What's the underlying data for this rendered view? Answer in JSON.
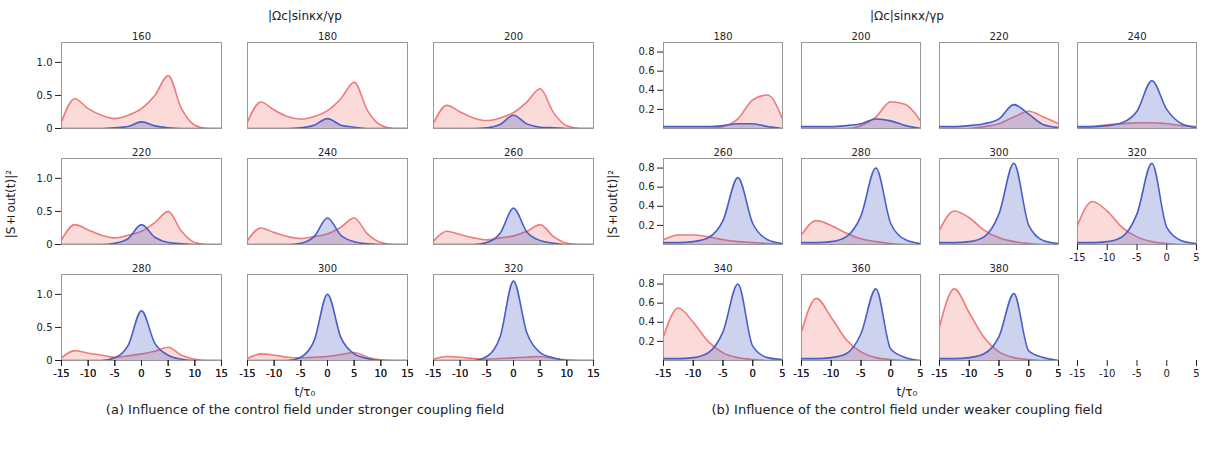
{
  "chart_data": [
    {
      "type": "line",
      "title": "(a) Influence of the control field under stronger coupling field",
      "xlabel": "t/τ₀",
      "ylabel": "|S±out(t)|²",
      "zlabel": "|Ωc|sinκx/γp",
      "x": [
        -15,
        -12.5,
        -10,
        -7.5,
        -5,
        -2.5,
        0,
        2.5,
        5,
        7.5,
        10,
        12.5,
        15
      ],
      "xlim": [
        -15,
        15
      ],
      "xticks": [
        -15,
        -10,
        -5,
        0,
        5,
        10,
        15
      ],
      "ylim": [
        0,
        1.3
      ],
      "yticks": [
        0,
        0.5,
        {
          "value": 1,
          "label": "1.0"
        }
      ],
      "z": [
        160,
        180,
        200,
        220,
        240,
        260,
        280,
        300,
        320
      ],
      "series": [
        {
          "color": "#ef7b7b",
          "values": [
            [
              0.1,
              0.45,
              0.3,
              0.2,
              0.15,
              0.2,
              0.3,
              0.5,
              0.8,
              0.3,
              0.05,
              0,
              0
            ],
            [
              0.1,
              0.4,
              0.28,
              0.18,
              0.14,
              0.18,
              0.27,
              0.45,
              0.7,
              0.27,
              0.05,
              0,
              0
            ],
            [
              0.08,
              0.35,
              0.25,
              0.16,
              0.12,
              0.16,
              0.24,
              0.4,
              0.6,
              0.24,
              0.04,
              0,
              0
            ],
            [
              0.07,
              0.3,
              0.22,
              0.14,
              0.1,
              0.14,
              0.2,
              0.33,
              0.5,
              0.2,
              0.03,
              0,
              0
            ],
            [
              0.06,
              0.25,
              0.18,
              0.12,
              0.09,
              0.12,
              0.16,
              0.26,
              0.4,
              0.16,
              0.03,
              0,
              0
            ],
            [
              0.05,
              0.2,
              0.15,
              0.1,
              0.07,
              0.1,
              0.13,
              0.2,
              0.3,
              0.12,
              0.02,
              0,
              0
            ],
            [
              0.04,
              0.15,
              0.11,
              0.08,
              0.05,
              0.07,
              0.1,
              0.14,
              0.2,
              0.08,
              0.02,
              0,
              0
            ],
            [
              0.03,
              0.1,
              0.08,
              0.05,
              0.04,
              0.05,
              0.06,
              0.09,
              0.12,
              0.05,
              0.01,
              0,
              0
            ],
            [
              0.02,
              0.06,
              0.05,
              0.03,
              0.02,
              0.03,
              0.04,
              0.05,
              0.06,
              0.03,
              0.01,
              0,
              0
            ]
          ]
        },
        {
          "color": "#4a5fc6",
          "values": [
            [
              0,
              0,
              0,
              0,
              0.01,
              0.03,
              0.1,
              0.04,
              0.01,
              0,
              0,
              0,
              0
            ],
            [
              0,
              0,
              0,
              0,
              0.01,
              0.05,
              0.15,
              0.05,
              0.02,
              0,
              0,
              0,
              0
            ],
            [
              0,
              0,
              0,
              0,
              0.01,
              0.06,
              0.2,
              0.07,
              0.02,
              0.01,
              0,
              0,
              0
            ],
            [
              0,
              0,
              0,
              0,
              0.02,
              0.09,
              0.3,
              0.11,
              0.03,
              0.01,
              0,
              0,
              0
            ],
            [
              0,
              0,
              0,
              0,
              0.02,
              0.12,
              0.4,
              0.14,
              0.04,
              0.01,
              0,
              0,
              0
            ],
            [
              0,
              0,
              0,
              0,
              0.03,
              0.17,
              0.55,
              0.19,
              0.06,
              0.02,
              0,
              0,
              0
            ],
            [
              0,
              0,
              0,
              0,
              0.04,
              0.23,
              0.75,
              0.26,
              0.08,
              0.02,
              0,
              0,
              0
            ],
            [
              0,
              0,
              0,
              0,
              0.05,
              0.3,
              1.0,
              0.35,
              0.1,
              0.03,
              0,
              0,
              0
            ],
            [
              0,
              0,
              0,
              0,
              0.06,
              0.36,
              1.2,
              0.42,
              0.12,
              0.04,
              0,
              0,
              0
            ]
          ]
        }
      ]
    },
    {
      "type": "line",
      "title": "(b) Influence of the control field under weaker coupling field",
      "xlabel": "t/τ₀",
      "ylabel": "|S±out(t)|²",
      "zlabel": "|Ωc|sinκx/γp",
      "x": [
        -15,
        -12.5,
        -10,
        -7.5,
        -5,
        -2.5,
        0,
        2.5,
        5
      ],
      "xlim": [
        -15,
        5
      ],
      "xticks": [
        -15,
        -10,
        -5,
        0,
        5
      ],
      "ylim": [
        0,
        0.9
      ],
      "yticks": [
        0.2,
        0.4,
        0.6,
        0.8
      ],
      "z": [
        180,
        200,
        220,
        240,
        260,
        280,
        300,
        320,
        340,
        360,
        380
      ],
      "series": [
        {
          "color": "#ef7b7b",
          "values": [
            [
              0,
              0,
              0,
              0,
              0.02,
              0.1,
              0.3,
              0.35,
              0.1
            ],
            [
              0,
              0,
              0,
              0,
              0.03,
              0.12,
              0.28,
              0.25,
              0.08
            ],
            [
              0,
              0,
              0,
              0.02,
              0.05,
              0.12,
              0.18,
              0.12,
              0.05
            ],
            [
              0,
              0.02,
              0.04,
              0.05,
              0.06,
              0.06,
              0.05,
              0.03,
              0.02
            ],
            [
              0.05,
              0.1,
              0.1,
              0.08,
              0.05,
              0.03,
              0.02,
              0.01,
              0
            ],
            [
              0.1,
              0.25,
              0.2,
              0.12,
              0.06,
              0.03,
              0.01,
              0,
              0
            ],
            [
              0.15,
              0.35,
              0.28,
              0.15,
              0.07,
              0.03,
              0.01,
              0,
              0
            ],
            [
              0.2,
              0.45,
              0.35,
              0.18,
              0.08,
              0.03,
              0.01,
              0,
              0
            ],
            [
              0.25,
              0.55,
              0.4,
              0.2,
              0.08,
              0.03,
              0.01,
              0,
              0
            ],
            [
              0.3,
              0.65,
              0.45,
              0.22,
              0.09,
              0.03,
              0.01,
              0,
              0
            ],
            [
              0.35,
              0.75,
              0.5,
              0.24,
              0.09,
              0.03,
              0.01,
              0,
              0
            ]
          ]
        },
        {
          "color": "#4a5fc6",
          "values": [
            [
              0.02,
              0.02,
              0.02,
              0.02,
              0.03,
              0.05,
              0.05,
              0.02,
              0
            ],
            [
              0.02,
              0.02,
              0.02,
              0.03,
              0.05,
              0.1,
              0.08,
              0.03,
              0
            ],
            [
              0.02,
              0.02,
              0.03,
              0.05,
              0.1,
              0.25,
              0.15,
              0.04,
              0.01
            ],
            [
              0.02,
              0.02,
              0.03,
              0.06,
              0.18,
              0.5,
              0.2,
              0.05,
              0.01
            ],
            [
              0.02,
              0.02,
              0.03,
              0.07,
              0.25,
              0.7,
              0.22,
              0.05,
              0.01
            ],
            [
              0.02,
              0.02,
              0.03,
              0.08,
              0.3,
              0.8,
              0.22,
              0.05,
              0.01
            ],
            [
              0.02,
              0.02,
              0.03,
              0.08,
              0.32,
              0.85,
              0.2,
              0.04,
              0.01
            ],
            [
              0.02,
              0.02,
              0.03,
              0.08,
              0.32,
              0.85,
              0.18,
              0.04,
              0.01
            ],
            [
              0.02,
              0.02,
              0.03,
              0.08,
              0.3,
              0.8,
              0.15,
              0.03,
              0.01
            ],
            [
              0.02,
              0.02,
              0.03,
              0.07,
              0.28,
              0.75,
              0.12,
              0.03,
              0
            ],
            [
              0.02,
              0.02,
              0.03,
              0.07,
              0.25,
              0.7,
              0.1,
              0.03,
              0
            ]
          ]
        }
      ]
    }
  ]
}
